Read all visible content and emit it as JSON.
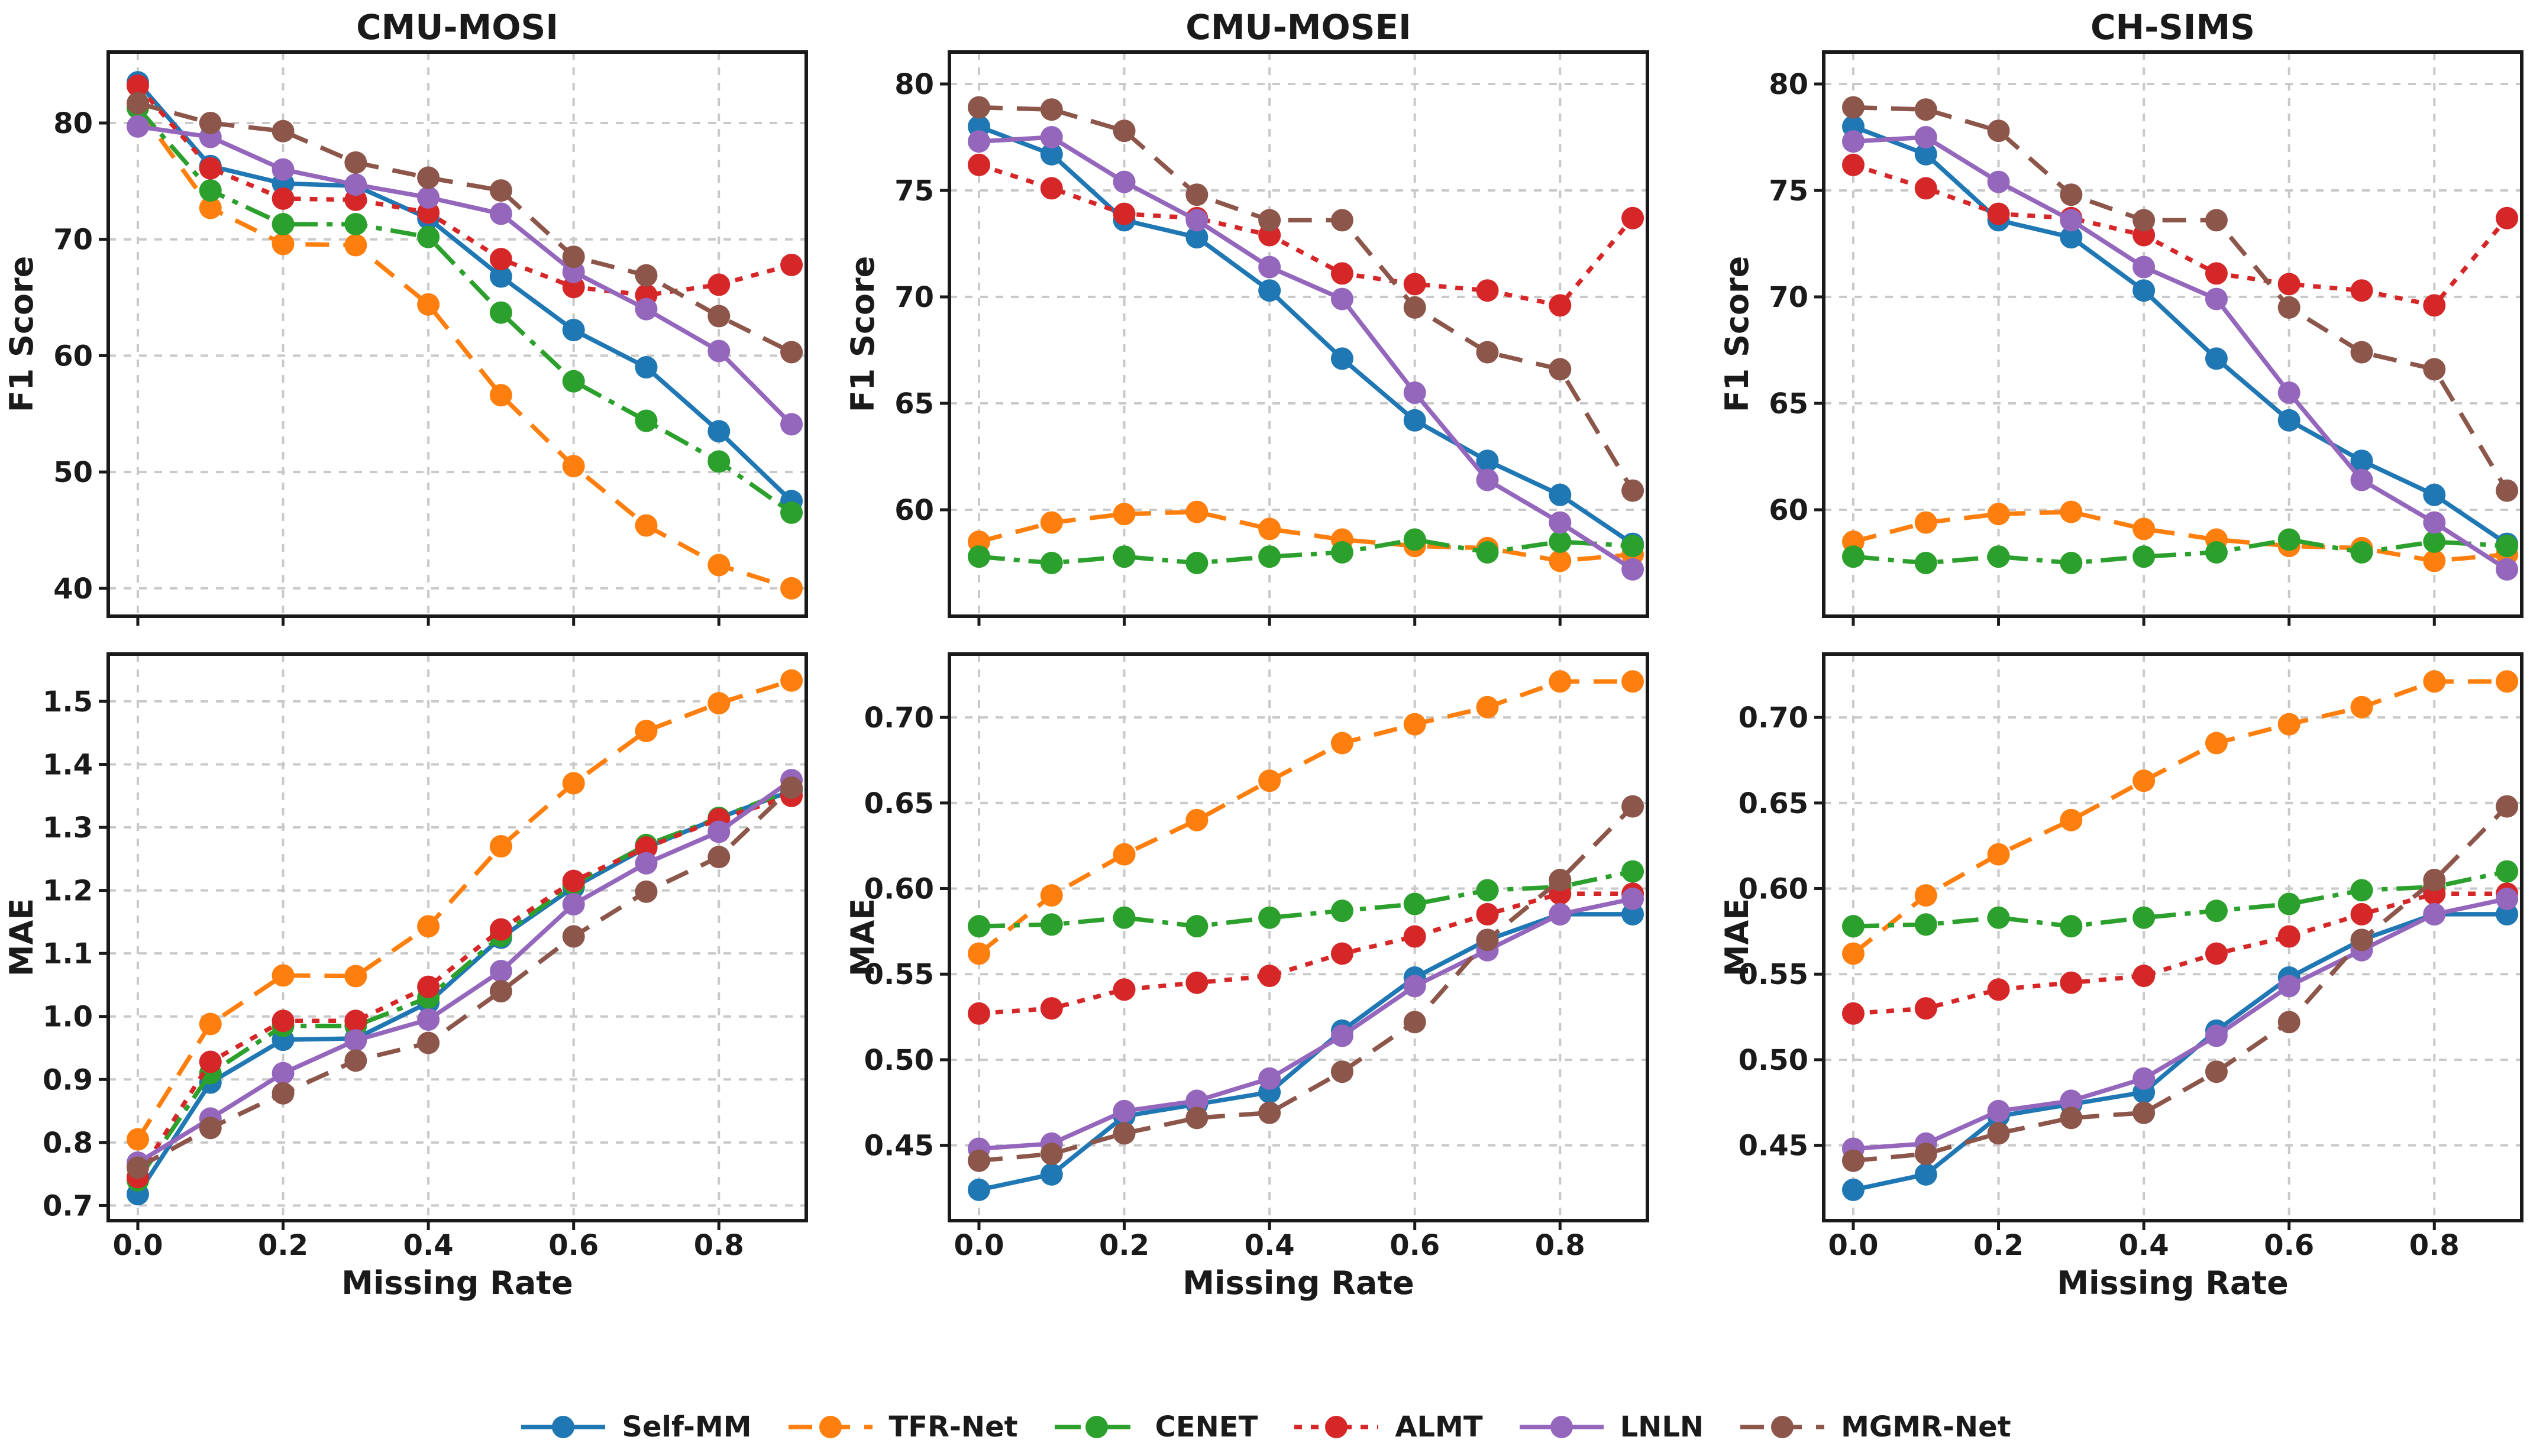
{
  "figure": {
    "background": "#ffffff",
    "xlabel": "Missing Rate"
  },
  "legend": {
    "entries": [
      {
        "label": "Self-MM",
        "color": "#1f77b4",
        "dash": "solid"
      },
      {
        "label": "TFR-Net",
        "color": "#ff7f0e",
        "dash": "dashed"
      },
      {
        "label": "CENET",
        "color": "#2ca02c",
        "dash": "dashdot"
      },
      {
        "label": "ALMT",
        "color": "#d62728",
        "dash": "dotted"
      },
      {
        "label": "LNLN",
        "color": "#9467bd",
        "dash": "solid"
      },
      {
        "label": "MGMR-Net",
        "color": "#8c564b",
        "dash": "dashed"
      }
    ]
  },
  "chart_data": [
    {
      "id": "cmu-mosi-f1",
      "type": "line",
      "title": "CMU-MOSI",
      "ylabel": "F1 Score",
      "xlabel": "",
      "x": [
        0.0,
        0.1,
        0.2,
        0.3,
        0.4,
        0.5,
        0.6,
        0.7,
        0.8,
        0.9
      ],
      "xticks": [
        0.0,
        0.2,
        0.4,
        0.6,
        0.8
      ],
      "yticks": [
        40,
        50,
        60,
        70,
        80
      ],
      "ytick_decimals": 0,
      "ylim": [
        37.6,
        86.1
      ],
      "xlim": [
        -0.0407,
        0.9203
      ],
      "grid": true,
      "series": [
        {
          "name": "Self-MM",
          "color": "#1f77b4",
          "dash": "solid",
          "values": [
            83.5,
            76.3,
            74.8,
            74.6,
            71.8,
            66.8,
            62.2,
            59.0,
            53.5,
            47.5
          ]
        },
        {
          "name": "TFR-Net",
          "color": "#ff7f0e",
          "dash": "dashed",
          "values": [
            81.3,
            72.7,
            69.6,
            69.5,
            64.4,
            56.6,
            50.5,
            45.4,
            42.0,
            40.0
          ]
        },
        {
          "name": "CENET",
          "color": "#2ca02c",
          "dash": "dashdot",
          "values": [
            81.3,
            74.2,
            71.3,
            71.3,
            70.2,
            63.7,
            57.8,
            54.4,
            50.9,
            46.5
          ]
        },
        {
          "name": "ALMT",
          "color": "#d62728",
          "dash": "dotted",
          "values": [
            83.2,
            76.1,
            73.5,
            73.4,
            72.3,
            68.3,
            65.9,
            65.2,
            66.1,
            67.8
          ]
        },
        {
          "name": "LNLN",
          "color": "#9467bd",
          "dash": "solid",
          "values": [
            79.7,
            78.8,
            76.0,
            74.7,
            73.6,
            72.2,
            67.2,
            64.0,
            60.4,
            54.1
          ]
        },
        {
          "name": "MGMR-Net",
          "color": "#8c564b",
          "dash": "dashed",
          "values": [
            81.7,
            80.0,
            79.3,
            76.6,
            75.3,
            74.2,
            68.5,
            66.9,
            63.4,
            60.3
          ]
        }
      ]
    },
    {
      "id": "cmu-mosei-f1",
      "type": "line",
      "title": "CMU-MOSEI",
      "ylabel": "F1 Score",
      "xlabel": "",
      "x": [
        0.0,
        0.1,
        0.2,
        0.3,
        0.4,
        0.5,
        0.6,
        0.7,
        0.8,
        0.9
      ],
      "xticks": [
        0.0,
        0.2,
        0.4,
        0.6,
        0.8
      ],
      "yticks": [
        60,
        65,
        70,
        75,
        80
      ],
      "ytick_decimals": 0,
      "ylim": [
        55.0,
        81.5
      ],
      "xlim": [
        -0.0407,
        0.9203
      ],
      "grid": true,
      "series": [
        {
          "name": "Self-MM",
          "color": "#1f77b4",
          "dash": "solid",
          "values": [
            78.0,
            76.7,
            73.6,
            72.8,
            70.3,
            67.1,
            64.2,
            62.3,
            60.7,
            58.4
          ]
        },
        {
          "name": "TFR-Net",
          "color": "#ff7f0e",
          "dash": "dashed",
          "values": [
            58.5,
            59.4,
            59.8,
            59.9,
            59.1,
            58.6,
            58.3,
            58.2,
            57.6,
            57.9
          ]
        },
        {
          "name": "CENET",
          "color": "#2ca02c",
          "dash": "dashdot",
          "values": [
            57.8,
            57.5,
            57.8,
            57.5,
            57.8,
            58.0,
            58.6,
            58.0,
            58.5,
            58.3
          ]
        },
        {
          "name": "ALMT",
          "color": "#d62728",
          "dash": "dotted",
          "values": [
            76.2,
            75.1,
            73.9,
            73.7,
            72.9,
            71.1,
            70.6,
            70.3,
            69.6,
            73.7
          ]
        },
        {
          "name": "LNLN",
          "color": "#9467bd",
          "dash": "solid",
          "values": [
            77.3,
            77.5,
            75.4,
            73.6,
            71.4,
            69.9,
            65.5,
            61.4,
            59.4,
            57.2
          ]
        },
        {
          "name": "MGMR-Net",
          "color": "#8c564b",
          "dash": "dashed",
          "values": [
            78.9,
            78.8,
            77.8,
            74.8,
            73.6,
            73.6,
            69.5,
            67.4,
            66.6,
            60.9
          ]
        }
      ]
    },
    {
      "id": "ch-sims-f1",
      "type": "line",
      "title": "CH-SIMS",
      "ylabel": "F1 Score",
      "xlabel": "",
      "x": [
        0.0,
        0.1,
        0.2,
        0.3,
        0.4,
        0.5,
        0.6,
        0.7,
        0.8,
        0.9
      ],
      "xticks": [
        0.0,
        0.2,
        0.4,
        0.6,
        0.8
      ],
      "yticks": [
        60,
        65,
        70,
        75,
        80
      ],
      "ytick_decimals": 0,
      "ylim": [
        55.0,
        81.5
      ],
      "xlim": [
        -0.0407,
        0.9203
      ],
      "grid": true,
      "series": [
        {
          "name": "Self-MM",
          "color": "#1f77b4",
          "dash": "solid",
          "values": [
            78.0,
            76.7,
            73.6,
            72.8,
            70.3,
            67.1,
            64.2,
            62.3,
            60.7,
            58.4
          ]
        },
        {
          "name": "TFR-Net",
          "color": "#ff7f0e",
          "dash": "dashed",
          "values": [
            58.5,
            59.4,
            59.8,
            59.9,
            59.1,
            58.6,
            58.3,
            58.2,
            57.6,
            57.9
          ]
        },
        {
          "name": "CENET",
          "color": "#2ca02c",
          "dash": "dashdot",
          "values": [
            57.8,
            57.5,
            57.8,
            57.5,
            57.8,
            58.0,
            58.6,
            58.0,
            58.5,
            58.3
          ]
        },
        {
          "name": "ALMT",
          "color": "#d62728",
          "dash": "dotted",
          "values": [
            76.2,
            75.1,
            73.9,
            73.7,
            72.9,
            71.1,
            70.6,
            70.3,
            69.6,
            73.7
          ]
        },
        {
          "name": "LNLN",
          "color": "#9467bd",
          "dash": "solid",
          "values": [
            77.3,
            77.5,
            75.4,
            73.6,
            71.4,
            69.9,
            65.5,
            61.4,
            59.4,
            57.2
          ]
        },
        {
          "name": "MGMR-Net",
          "color": "#8c564b",
          "dash": "dashed",
          "values": [
            78.9,
            78.8,
            77.8,
            74.8,
            73.6,
            73.6,
            69.5,
            67.4,
            66.6,
            60.9
          ]
        }
      ]
    },
    {
      "id": "cmu-mosi-mae",
      "type": "line",
      "title": "",
      "ylabel": "MAE",
      "xlabel": "Missing Rate",
      "x": [
        0.0,
        0.1,
        0.2,
        0.3,
        0.4,
        0.5,
        0.6,
        0.7,
        0.8,
        0.9
      ],
      "xticks": [
        0.0,
        0.2,
        0.4,
        0.6,
        0.8
      ],
      "yticks": [
        0.7,
        0.8,
        0.9,
        1.0,
        1.1,
        1.2,
        1.3,
        1.4,
        1.5
      ],
      "ytick_decimals": 1,
      "ylim": [
        0.676,
        1.575
      ],
      "xlim": [
        -0.0407,
        0.9203
      ],
      "grid": true,
      "series": [
        {
          "name": "Self-MM",
          "color": "#1f77b4",
          "dash": "solid",
          "values": [
            0.718,
            0.895,
            0.963,
            0.965,
            1.022,
            1.125,
            1.205,
            1.268,
            1.315,
            1.358
          ]
        },
        {
          "name": "TFR-Net",
          "color": "#ff7f0e",
          "dash": "dashed",
          "values": [
            0.805,
            0.988,
            1.065,
            1.064,
            1.143,
            1.27,
            1.37,
            1.453,
            1.497,
            1.533
          ]
        },
        {
          "name": "CENET",
          "color": "#2ca02c",
          "dash": "dashdot",
          "values": [
            0.74,
            0.91,
            0.985,
            0.985,
            1.03,
            1.128,
            1.21,
            1.272,
            1.315,
            1.36
          ]
        },
        {
          "name": "ALMT",
          "color": "#d62728",
          "dash": "dotted",
          "values": [
            0.745,
            0.928,
            0.993,
            0.993,
            1.047,
            1.138,
            1.215,
            1.268,
            1.313,
            1.35
          ]
        },
        {
          "name": "LNLN",
          "color": "#9467bd",
          "dash": "solid",
          "values": [
            0.768,
            0.838,
            0.91,
            0.962,
            0.995,
            1.072,
            1.178,
            1.243,
            1.293,
            1.375
          ]
        },
        {
          "name": "MGMR-Net",
          "color": "#8c564b",
          "dash": "dashed",
          "values": [
            0.76,
            0.823,
            0.878,
            0.93,
            0.958,
            1.04,
            1.127,
            1.198,
            1.253,
            1.363
          ]
        }
      ]
    },
    {
      "id": "cmu-mosei-mae",
      "type": "line",
      "title": "",
      "ylabel": "MAE",
      "xlabel": "Missing Rate",
      "x": [
        0.0,
        0.1,
        0.2,
        0.3,
        0.4,
        0.5,
        0.6,
        0.7,
        0.8,
        0.9
      ],
      "xticks": [
        0.0,
        0.2,
        0.4,
        0.6,
        0.8
      ],
      "yticks": [
        0.45,
        0.5,
        0.55,
        0.6,
        0.65,
        0.7
      ],
      "ytick_decimals": 2,
      "ylim": [
        0.406,
        0.737
      ],
      "xlim": [
        -0.0407,
        0.9203
      ],
      "grid": true,
      "series": [
        {
          "name": "Self-MM",
          "color": "#1f77b4",
          "dash": "solid",
          "values": [
            0.424,
            0.433,
            0.467,
            0.474,
            0.481,
            0.517,
            0.548,
            0.57,
            0.585,
            0.585
          ]
        },
        {
          "name": "TFR-Net",
          "color": "#ff7f0e",
          "dash": "dashed",
          "values": [
            0.562,
            0.596,
            0.62,
            0.64,
            0.663,
            0.685,
            0.696,
            0.706,
            0.721,
            0.721
          ]
        },
        {
          "name": "CENET",
          "color": "#2ca02c",
          "dash": "dashdot",
          "values": [
            0.578,
            0.579,
            0.583,
            0.578,
            0.583,
            0.587,
            0.591,
            0.599,
            0.601,
            0.61
          ]
        },
        {
          "name": "ALMT",
          "color": "#d62728",
          "dash": "dotted",
          "values": [
            0.527,
            0.53,
            0.541,
            0.545,
            0.549,
            0.562,
            0.572,
            0.585,
            0.597,
            0.597
          ]
        },
        {
          "name": "LNLN",
          "color": "#9467bd",
          "dash": "solid",
          "values": [
            0.448,
            0.451,
            0.47,
            0.476,
            0.489,
            0.514,
            0.543,
            0.564,
            0.585,
            0.594
          ]
        },
        {
          "name": "MGMR-Net",
          "color": "#8c564b",
          "dash": "dashed",
          "values": [
            0.441,
            0.445,
            0.457,
            0.466,
            0.469,
            0.493,
            0.522,
            0.57,
            0.605,
            0.648
          ]
        }
      ]
    },
    {
      "id": "ch-sims-mae",
      "type": "line",
      "title": "",
      "ylabel": "MAE",
      "xlabel": "Missing Rate",
      "x": [
        0.0,
        0.1,
        0.2,
        0.3,
        0.4,
        0.5,
        0.6,
        0.7,
        0.8,
        0.9
      ],
      "xticks": [
        0.0,
        0.2,
        0.4,
        0.6,
        0.8
      ],
      "yticks": [
        0.45,
        0.5,
        0.55,
        0.6,
        0.65,
        0.7
      ],
      "ytick_decimals": 2,
      "ylim": [
        0.406,
        0.737
      ],
      "xlim": [
        -0.0407,
        0.9203
      ],
      "grid": true,
      "series": [
        {
          "name": "Self-MM",
          "color": "#1f77b4",
          "dash": "solid",
          "values": [
            0.424,
            0.433,
            0.467,
            0.474,
            0.481,
            0.517,
            0.548,
            0.57,
            0.585,
            0.585
          ]
        },
        {
          "name": "TFR-Net",
          "color": "#ff7f0e",
          "dash": "dashed",
          "values": [
            0.562,
            0.596,
            0.62,
            0.64,
            0.663,
            0.685,
            0.696,
            0.706,
            0.721,
            0.721
          ]
        },
        {
          "name": "CENET",
          "color": "#2ca02c",
          "dash": "dashdot",
          "values": [
            0.578,
            0.579,
            0.583,
            0.578,
            0.583,
            0.587,
            0.591,
            0.599,
            0.601,
            0.61
          ]
        },
        {
          "name": "ALMT",
          "color": "#d62728",
          "dash": "dotted",
          "values": [
            0.527,
            0.53,
            0.541,
            0.545,
            0.549,
            0.562,
            0.572,
            0.585,
            0.597,
            0.597
          ]
        },
        {
          "name": "LNLN",
          "color": "#9467bd",
          "dash": "solid",
          "values": [
            0.448,
            0.451,
            0.47,
            0.476,
            0.489,
            0.514,
            0.543,
            0.564,
            0.585,
            0.594
          ]
        },
        {
          "name": "MGMR-Net",
          "color": "#8c564b",
          "dash": "dashed",
          "values": [
            0.441,
            0.445,
            0.457,
            0.466,
            0.469,
            0.493,
            0.522,
            0.57,
            0.605,
            0.648
          ]
        }
      ]
    }
  ]
}
